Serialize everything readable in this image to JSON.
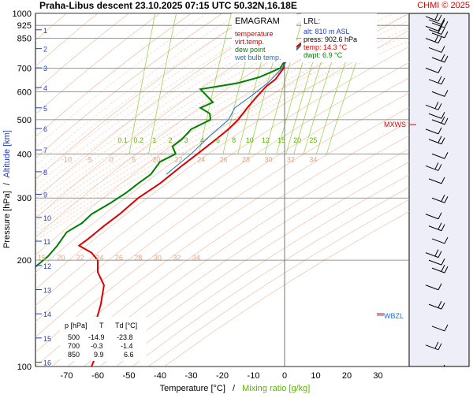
{
  "chart_data": {
    "type": "line",
    "header": {
      "title": "Praha-Libus   descent   23.10.2025 07:15 UTC  50.32N,16.18E",
      "credit": "CHMI © 2025"
    },
    "legend": {
      "title": "EMAGRAM",
      "items": [
        {
          "name": "temperature",
          "color": "#e00000"
        },
        {
          "name": "virt.temp.",
          "color": "#e00000"
        },
        {
          "name": "dew point",
          "color": "#008000"
        },
        {
          "name": "wet bulb temp.",
          "color": "#1f6fc8"
        }
      ]
    },
    "lrl": {
      "title": "LRL:",
      "alt": "alt: 810 m ASL",
      "press": "press: 902.6 hPa",
      "temp": "temp: 14.3 °C",
      "dwpt": "dwpt: 6.9 °C"
    },
    "xaxis": {
      "label": "Temperature [°C]",
      "label_extra": "Mixing ratio [g/kg]",
      "separator": "/",
      "range": [
        -80,
        40
      ],
      "ticks": [
        "-70",
        "-60",
        "-50",
        "-40",
        "-30",
        "-20",
        "-10",
        "0",
        "10",
        "20",
        "30"
      ]
    },
    "yaxis": {
      "label": "Pressure [hPa]",
      "separator": "/",
      "label_extra": "Altitude [km]",
      "scale": "log",
      "range": [
        1000,
        100
      ],
      "ticks": [
        "100",
        "200",
        "300",
        "400",
        "500",
        "600",
        "700",
        "850",
        "925",
        "1000"
      ]
    },
    "altitude_ticks": [
      "1",
      "2",
      "3",
      "4",
      "5",
      "6",
      "7",
      "8",
      "9",
      "10",
      "11",
      "12",
      "13",
      "14",
      "15",
      "16"
    ],
    "mixing_ratio_labels_upper": [
      "15",
      "20",
      "22",
      "24",
      "26",
      "28",
      "30",
      "32",
      "34"
    ],
    "mixing_ratio_labels_lower": [
      "-10",
      "-5",
      "0",
      "5",
      "20",
      "22",
      "24",
      "26",
      "28",
      "30",
      "32",
      "34"
    ],
    "mixing_ratio_labels_green": [
      "0.1",
      "0.2",
      "1",
      "2",
      "3",
      "4",
      "6",
      "8",
      "10",
      "12",
      "15",
      "20",
      "25"
    ],
    "markers": {
      "mxws": "MXWS",
      "wbzl": "WBZL"
    },
    "table": {
      "headers": [
        "p [hPa]",
        "T",
        "Td [°C]"
      ],
      "rows": [
        [
          "500",
          "-14.9",
          "-23.8"
        ],
        [
          "700",
          "-0.3",
          "-1.4"
        ],
        [
          "850",
          "9.9",
          "6.6"
        ]
      ]
    },
    "series": [
      {
        "name": "temperature",
        "color": "#e00000",
        "points": [
          [
            14.3,
            902
          ],
          [
            10,
            870
          ],
          [
            5,
            820
          ],
          [
            2,
            780
          ],
          [
            0,
            740
          ],
          [
            -0.3,
            700
          ],
          [
            -3,
            650
          ],
          [
            -6,
            620
          ],
          [
            -9,
            580
          ],
          [
            -12,
            540
          ],
          [
            -14.9,
            500
          ],
          [
            -18,
            470
          ],
          [
            -22,
            440
          ],
          [
            -28,
            400
          ],
          [
            -33,
            370
          ],
          [
            -40,
            330
          ],
          [
            -47,
            300
          ],
          [
            -53,
            270
          ],
          [
            -58,
            250
          ],
          [
            -63,
            230
          ],
          [
            -66,
            220
          ],
          [
            -62,
            210
          ],
          [
            -60,
            200
          ],
          [
            -60,
            185
          ],
          [
            -58,
            170
          ],
          [
            -59,
            150
          ],
          [
            -61,
            130
          ],
          [
            -61,
            115
          ],
          [
            -61,
            105
          ],
          [
            -62,
            100
          ]
        ]
      },
      {
        "name": "dew point",
        "color": "#008000",
        "points": [
          [
            6.9,
            902
          ],
          [
            6.6,
            850
          ],
          [
            5,
            810
          ],
          [
            2,
            760
          ],
          [
            -0.5,
            720
          ],
          [
            -1.4,
            700
          ],
          [
            -8,
            660
          ],
          [
            -15,
            635
          ],
          [
            -22,
            620
          ],
          [
            -27,
            610
          ],
          [
            -23,
            560
          ],
          [
            -27,
            540
          ],
          [
            -24,
            520
          ],
          [
            -23.8,
            500
          ],
          [
            -30,
            470
          ],
          [
            -33,
            440
          ],
          [
            -36,
            420
          ],
          [
            -35,
            400
          ],
          [
            -40,
            380
          ],
          [
            -43,
            350
          ],
          [
            -47,
            330
          ],
          [
            -51,
            310
          ],
          [
            -56,
            290
          ],
          [
            -62,
            270
          ],
          [
            -65,
            255
          ],
          [
            -70,
            240
          ],
          [
            -73,
            220
          ],
          [
            -76,
            205
          ],
          [
            -79,
            195
          ],
          [
            -82,
            185
          ]
        ]
      },
      {
        "name": "wet bulb temp.",
        "color": "#1f6fc8",
        "points": [
          [
            9.3,
            902
          ],
          [
            7.5,
            850
          ],
          [
            4.5,
            800
          ],
          [
            1.5,
            750
          ],
          [
            -0.8,
            700
          ],
          [
            -5,
            640
          ],
          [
            -10,
            590
          ],
          [
            -16,
            540
          ],
          [
            -18,
            500
          ],
          [
            -24,
            450
          ],
          [
            -30,
            400
          ],
          [
            -38,
            350
          ]
        ]
      }
    ],
    "wind_barb_levels": [
      980,
      960,
      940,
      920,
      900,
      880,
      850,
      800,
      750,
      700,
      650,
      600,
      550,
      520,
      500,
      470,
      440,
      400,
      370,
      340,
      300,
      270,
      250,
      230,
      210,
      200,
      190,
      170,
      150,
      130,
      115,
      100
    ]
  }
}
